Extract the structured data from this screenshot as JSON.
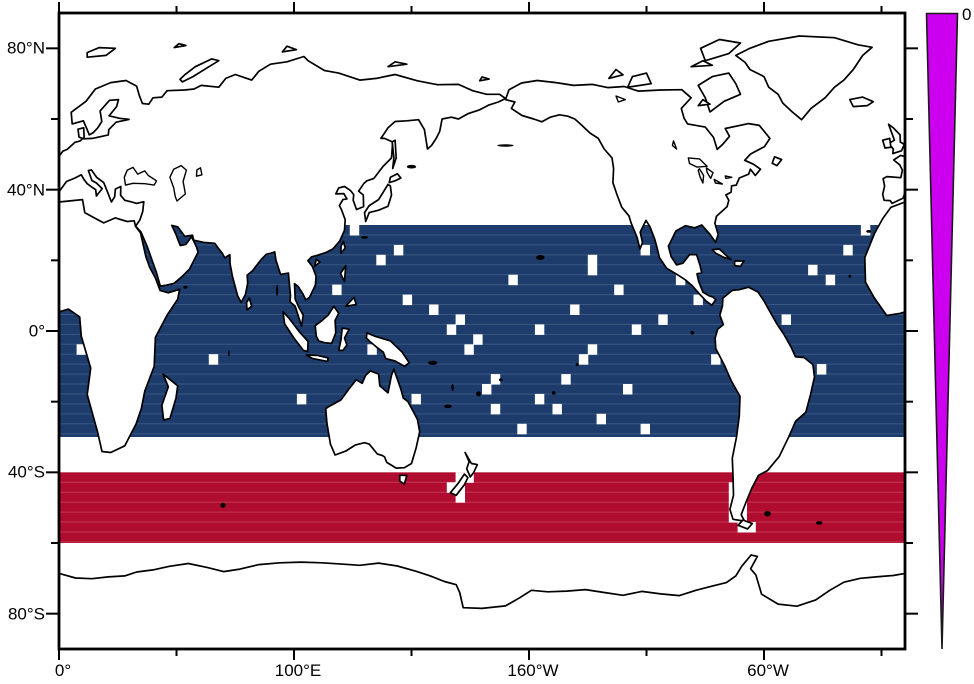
{
  "chart_data": {
    "type": "heatmap",
    "subtype": "global lat-lon map with ocean grid-cell mask bands",
    "title": "",
    "xlabel": "",
    "ylabel": "",
    "projection": "equirectangular, longitudes 0-360 with Greenwich at left edge",
    "lon_range": [
      0,
      360
    ],
    "lat_range": [
      -90,
      90
    ],
    "x_ticks_major": [
      {
        "lon": 0,
        "label": "0°"
      },
      {
        "lon": 100,
        "label": "100°E"
      },
      {
        "lon": 200,
        "label": "160°W"
      },
      {
        "lon": 300,
        "label": "60°W"
      }
    ],
    "x_ticks_minor_lon": [
      50,
      150,
      250,
      350
    ],
    "y_ticks_major": [
      {
        "lat": 80,
        "label": "80°N"
      },
      {
        "lat": 40,
        "label": "40°N"
      },
      {
        "lat": 0,
        "label": "0°"
      },
      {
        "lat": -40,
        "label": "40°S"
      },
      {
        "lat": -80,
        "label": "80°S"
      }
    ],
    "y_ticks_minor_lat": [
      60,
      20,
      -20,
      -60
    ],
    "grid_cell_deg": {
      "lon": 3.75,
      "lat": 2.8125
    },
    "bands": [
      {
        "name": "tropical-ocean-band",
        "lat_max": 30,
        "lat_min": -30,
        "color": "#1d3c6c",
        "row_line_color": "#3a5781",
        "description": "ocean grid cells 30N-30S, scattered missing cells shown white"
      },
      {
        "name": "southern-ocean-band",
        "lat_max": -40,
        "lat_min": -60,
        "color": "#b00c2f",
        "row_line_color": "#c23a52",
        "description": "ocean grid cells 40S-60S, land cells shown white"
      }
    ],
    "missing_cells_blue": [
      [
        33,
        0
      ],
      [
        36,
        3
      ],
      [
        38,
        2
      ],
      [
        39,
        7
      ],
      [
        42,
        8
      ],
      [
        45,
        9
      ],
      [
        44,
        10
      ],
      [
        47,
        11
      ],
      [
        46,
        12
      ],
      [
        49,
        15
      ],
      [
        48,
        16
      ],
      [
        49,
        18
      ],
      [
        52,
        20
      ],
      [
        54,
        10
      ],
      [
        54,
        17
      ],
      [
        56,
        18
      ],
      [
        57,
        15
      ],
      [
        22,
        1
      ],
      [
        25,
        2
      ],
      [
        17,
        13
      ],
      [
        27,
        17
      ],
      [
        4,
        9
      ],
      [
        2,
        12
      ],
      [
        6,
        15
      ],
      [
        60,
        3
      ],
      [
        60,
        4
      ],
      [
        66,
        2
      ],
      [
        65,
        10
      ],
      [
        60,
        12
      ],
      [
        59,
        13
      ],
      [
        61,
        19
      ],
      [
        66,
        20
      ],
      [
        64,
        16
      ],
      [
        70,
        5
      ],
      [
        72,
        7
      ],
      [
        68,
        9
      ],
      [
        74,
        13
      ],
      [
        85,
        4
      ],
      [
        87,
        5
      ],
      [
        91,
        0
      ],
      [
        89,
        2
      ],
      [
        82,
        9
      ],
      [
        86,
        14
      ],
      [
        80,
        18
      ],
      [
        93,
        7
      ],
      [
        77,
        16
      ],
      [
        35,
        12
      ],
      [
        40,
        17
      ],
      [
        31,
        6
      ],
      [
        51,
        5
      ],
      [
        58,
        8
      ],
      [
        63,
        6
      ]
    ],
    "missing_cells_red": [
      [
        76,
        1
      ],
      [
        76,
        2
      ],
      [
        76,
        3
      ],
      [
        76,
        4
      ],
      [
        77,
        2
      ],
      [
        77,
        3
      ],
      [
        77,
        4
      ],
      [
        77,
        5
      ],
      [
        78,
        5
      ],
      [
        45,
        0
      ],
      [
        46,
        0
      ],
      [
        44,
        1
      ],
      [
        45,
        1
      ],
      [
        45,
        2
      ]
    ],
    "colorbar": {
      "top_label": "0",
      "color": "#cc00ee",
      "outline_color": "#1a1a1a",
      "shape": "wedge tapering to a point at bottom"
    },
    "frame_color": "#000000",
    "land_fill": "#ffffff",
    "coast_color": "#000000"
  }
}
